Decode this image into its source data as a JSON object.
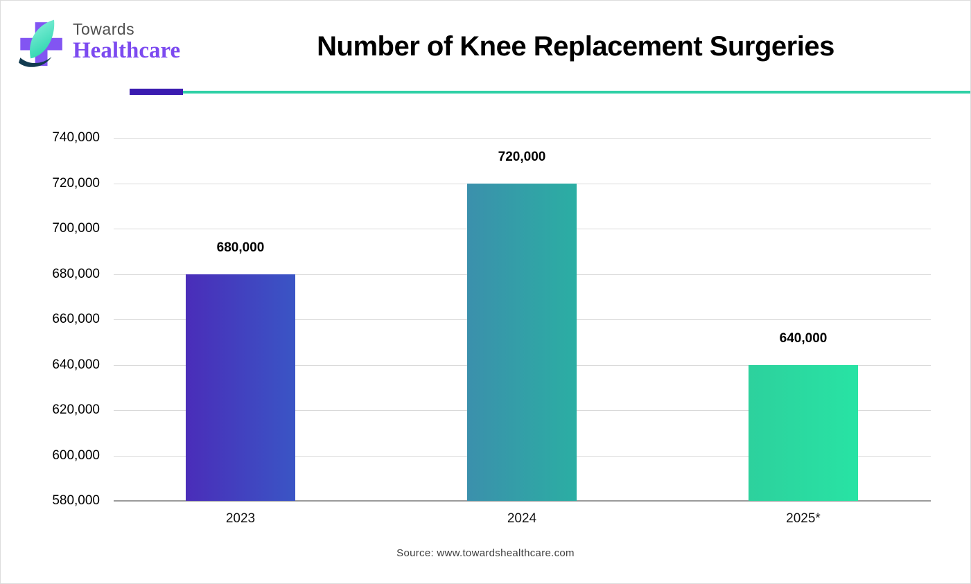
{
  "header": {
    "logo": {
      "line1": "Towards",
      "line2": "Healthcare"
    },
    "title": "Number of Knee Replacement Surgeries"
  },
  "chart_data": {
    "type": "bar",
    "title": "Number of Knee Replacement Surgeries",
    "categories": [
      "2023",
      "2024",
      "2025*"
    ],
    "values": [
      680000,
      720000,
      640000
    ],
    "value_labels": [
      "680,000",
      "720,000",
      "640,000"
    ],
    "yticks": [
      580000,
      600000,
      620000,
      640000,
      660000,
      680000,
      700000,
      720000,
      740000
    ],
    "ytick_labels": [
      "580,000",
      "600,000",
      "620,000",
      "640,000",
      "660,000",
      "680,000",
      "700,000",
      "720,000",
      "740,000"
    ],
    "ylim": [
      580000,
      740000
    ],
    "grid": true,
    "legend": "none",
    "bar_gradients": [
      [
        "#4a2db9",
        "#3a55c5"
      ],
      [
        "#3b90ac",
        "#2baea3"
      ],
      [
        "#2dd19d",
        "#28e3a4"
      ]
    ]
  },
  "footer": {
    "source": "Source: www.towardshealthcare.com"
  },
  "colors": {
    "divider_purple": "#3a1bb0",
    "divider_teal": "#2fd0a6",
    "logo_purple": "#7c4af0",
    "logo_cross": "#8255f2",
    "logo_leaf_light": "#8df2dd",
    "logo_leaf_dark": "#2fd6b0",
    "logo_swoosh": "#123b50"
  }
}
